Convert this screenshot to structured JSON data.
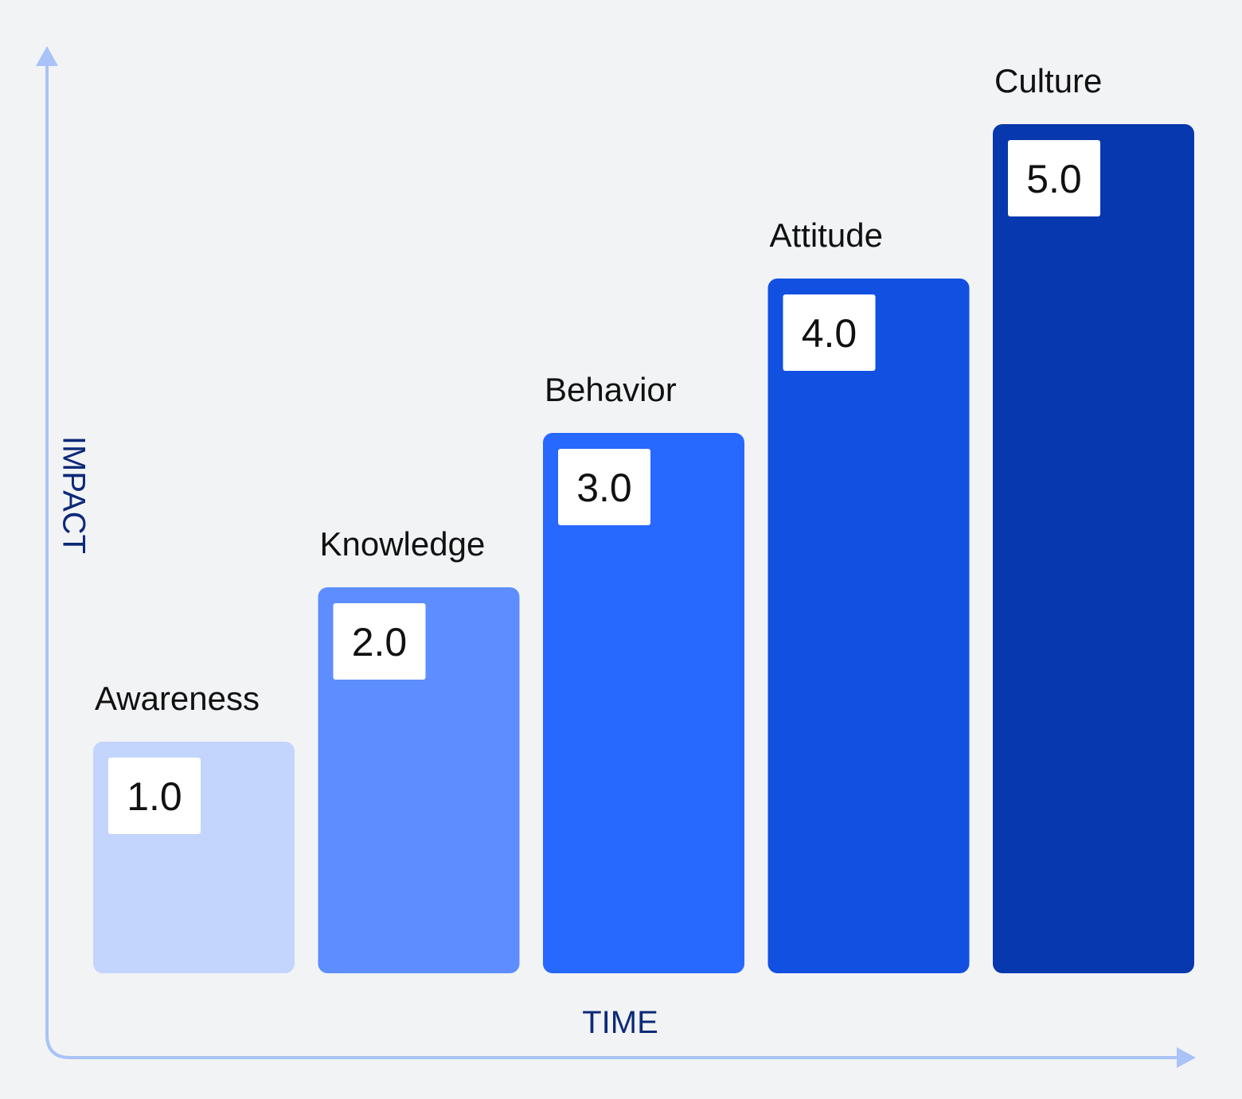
{
  "chart_data": {
    "type": "bar",
    "categories": [
      "Awareness",
      "Knowledge",
      "Behavior",
      "Attitude",
      "Culture"
    ],
    "values": [
      1.0,
      2.0,
      3.0,
      4.0,
      5.0
    ],
    "value_labels": [
      "1.0",
      "2.0",
      "3.0",
      "4.0",
      "5.0"
    ],
    "title": "",
    "xlabel": "TIME",
    "ylabel": "IMPACT",
    "ylim": [
      0,
      5.5
    ],
    "grid": false,
    "legend": "none",
    "colors": {
      "bars": [
        "#c3d5fd",
        "#5d8dfe",
        "#2768fe",
        "#1150e0",
        "#0838ae"
      ],
      "axis": "#a9c3f8",
      "axis_title": "#0d2a78",
      "label_box": "#ffffff",
      "text": "#111111",
      "background": "#f2f3f5"
    }
  }
}
